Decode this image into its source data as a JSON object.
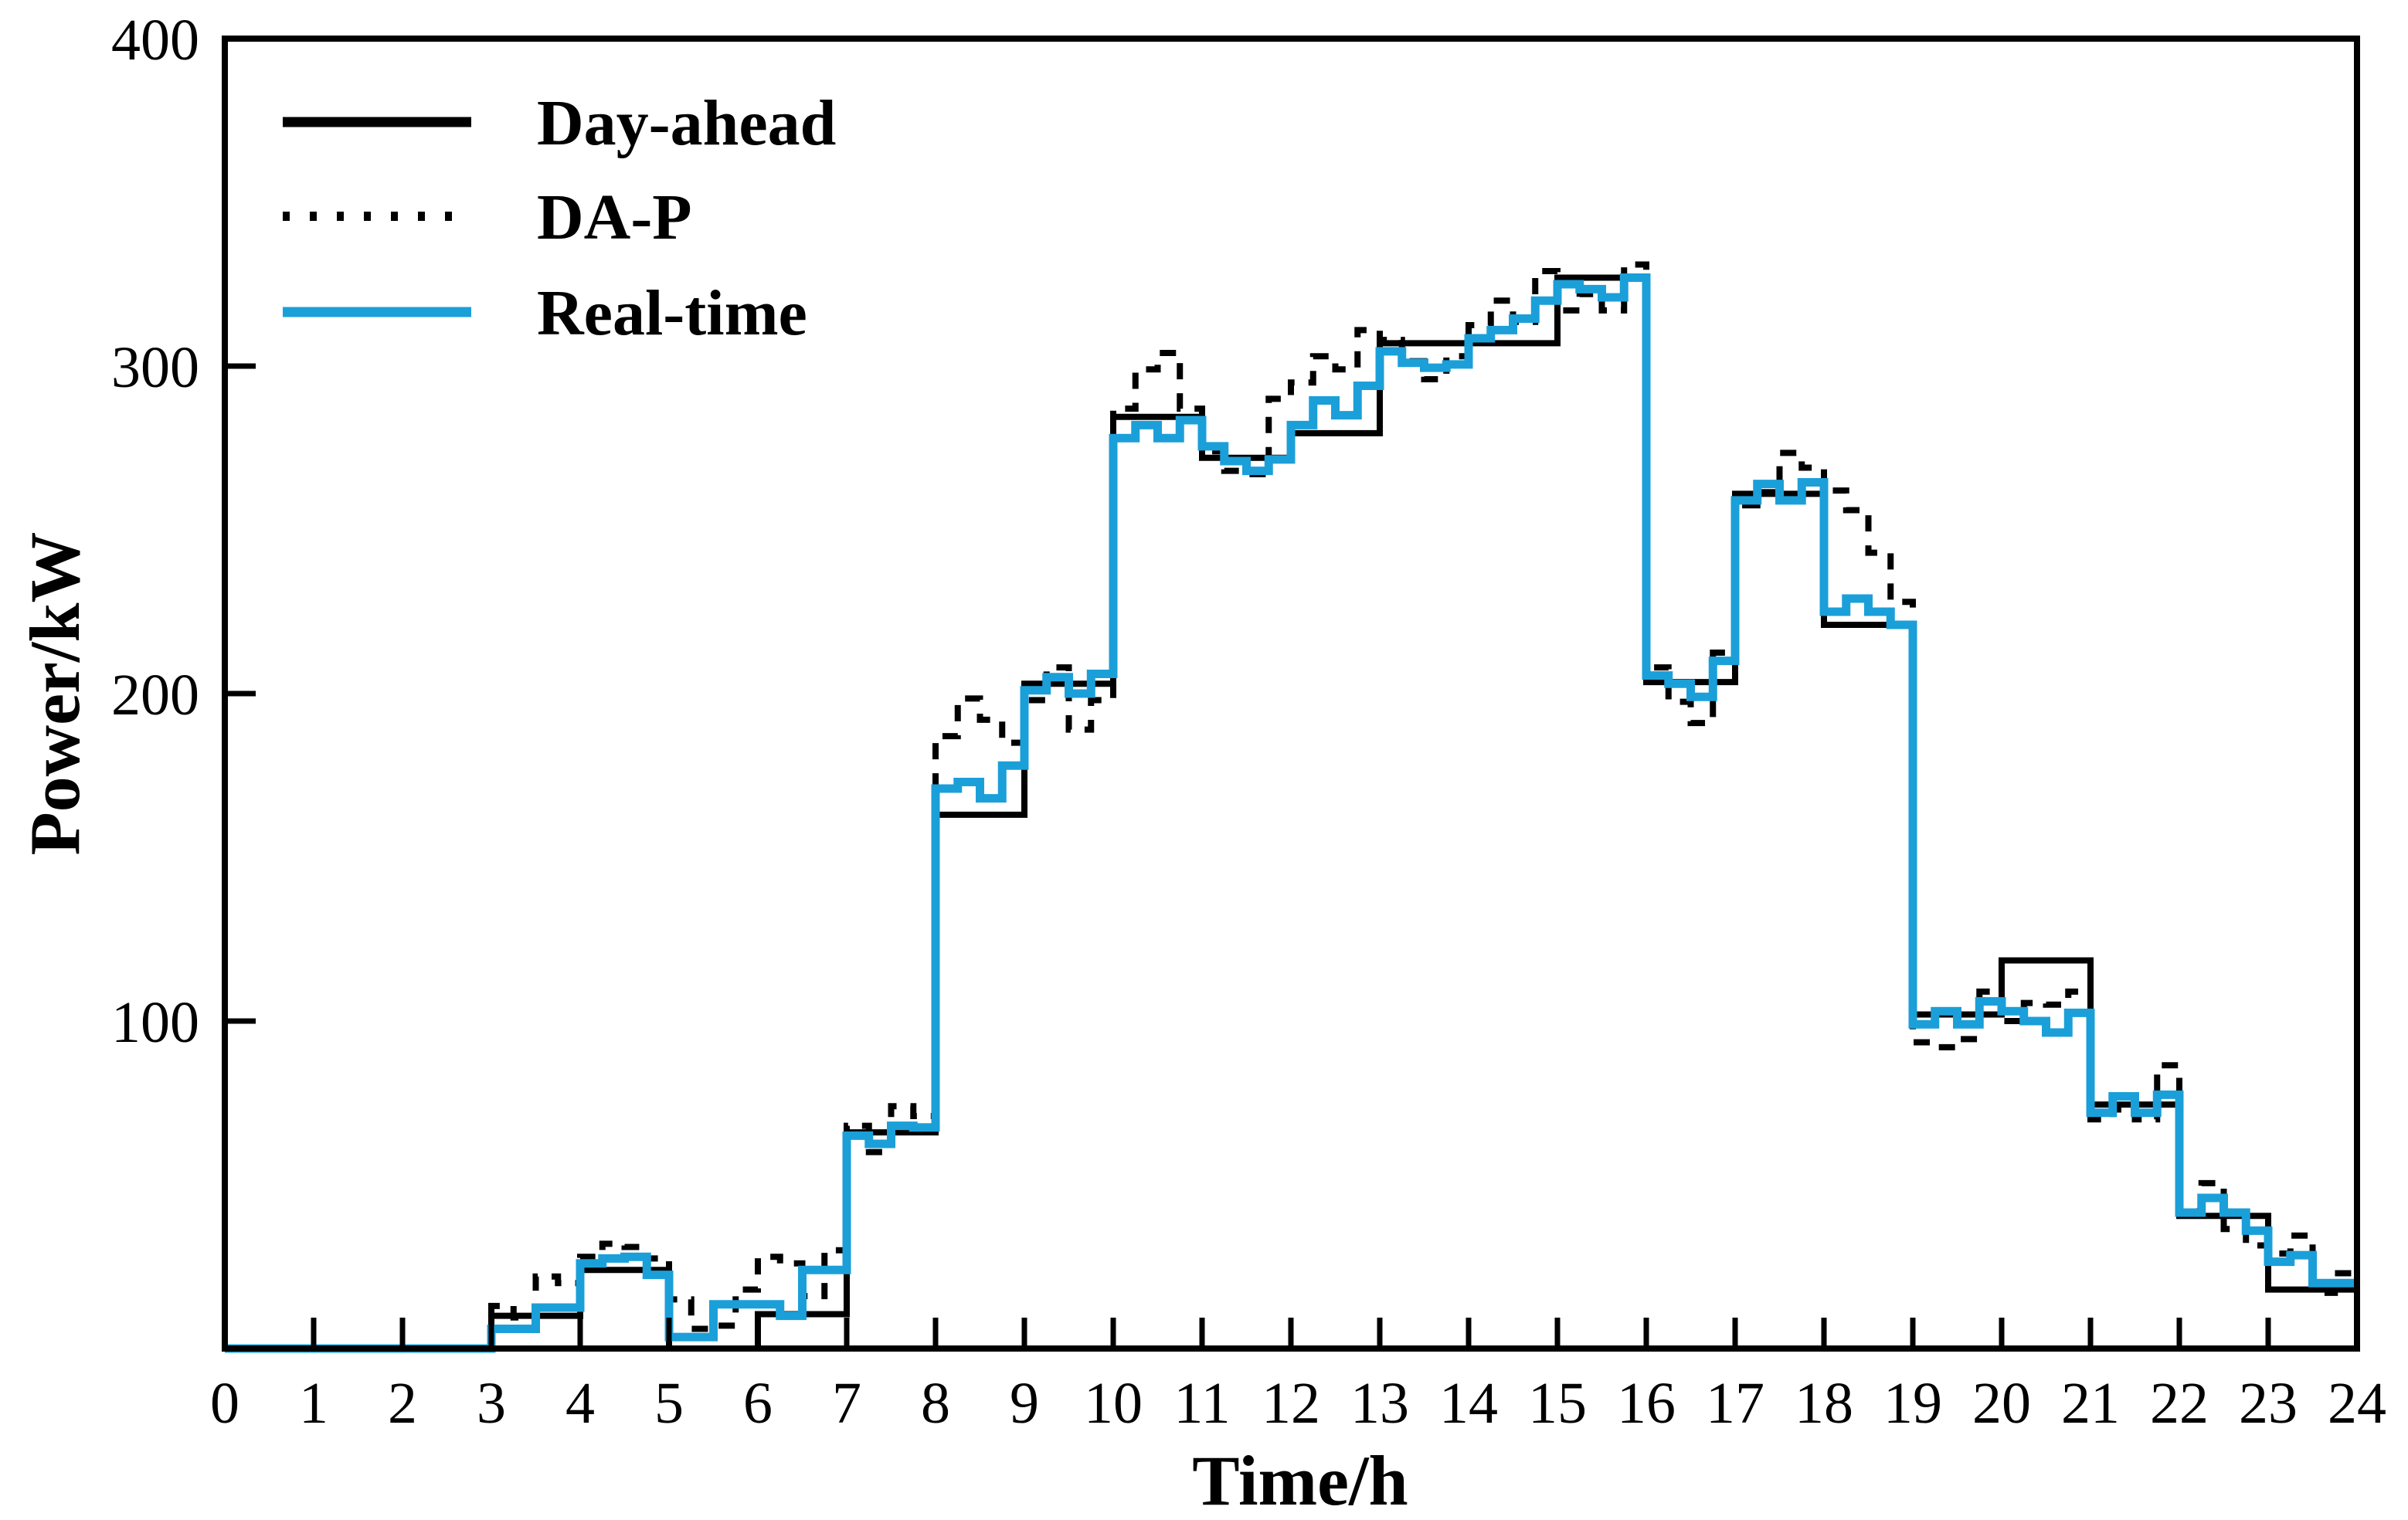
{
  "figure": {
    "x_axis_title": "Time/h",
    "y_axis_title": "Power/kW"
  },
  "legend": {
    "position": "upper-left",
    "items": [
      {
        "label": "Day-ahead",
        "line_style": "solid",
        "color": "#000000"
      },
      {
        "label": "DA-P",
        "line_style": "dashed",
        "color": "#000000"
      },
      {
        "label": "Real-time",
        "line_style": "solid",
        "color": "#1B9FD9"
      }
    ]
  },
  "colors": {
    "foreground": "#000000",
    "realtime_blue": "#1B9FD9",
    "background": "#FFFFFF"
  },
  "chart_data": {
    "type": "line",
    "step": true,
    "title": "",
    "xlabel": "Time/h",
    "ylabel": "Power/kW",
    "xlim": [
      0,
      24
    ],
    "ylim": [
      0,
      400
    ],
    "x_ticks": [
      0,
      1,
      2,
      3,
      4,
      5,
      6,
      7,
      8,
      9,
      10,
      11,
      12,
      13,
      14,
      15,
      16,
      17,
      18,
      19,
      20,
      21,
      22,
      23,
      24
    ],
    "y_ticks": [
      100,
      200,
      300,
      400
    ],
    "grid": false,
    "legend_position": "upper-left",
    "series": [
      {
        "name": "Day-ahead",
        "color": "#000000",
        "dash": "solid",
        "width": 8,
        "interval_hours": 1,
        "values": [
          0,
          0,
          0,
          10,
          24,
          0,
          10.5,
          66,
          163,
          203,
          284.5,
          272,
          279.5,
          307,
          307,
          327,
          203.5,
          261,
          221,
          102,
          118.5,
          74.5,
          40.5,
          18
        ]
      },
      {
        "name": "DA-P",
        "color": "#000000",
        "dash": "dashed",
        "width": 8,
        "interval_hours": 0.25,
        "values": [
          0,
          0,
          0,
          0,
          0,
          0,
          0,
          0,
          0,
          0,
          0,
          0,
          13,
          9.5,
          22,
          20,
          28,
          32,
          31,
          27.5,
          15,
          6,
          7,
          18,
          28,
          26,
          16,
          30,
          68,
          60,
          74,
          71,
          187,
          198.5,
          192,
          185,
          198,
          208,
          189,
          198,
          287,
          299,
          304,
          287,
          274,
          268,
          267,
          290,
          295,
          303,
          299,
          311,
          308,
          301.5,
          296,
          303,
          312.5,
          320,
          313.5,
          329,
          317,
          322,
          317,
          331,
          208,
          197.5,
          191,
          212.5,
          257.5,
          261.5,
          273.5,
          269,
          262,
          256,
          243,
          228,
          93.5,
          92,
          94.5,
          109,
          100,
          105.5,
          105,
          109,
          70,
          73,
          70,
          86.5,
          42,
          50.5,
          36.5,
          31.5,
          29,
          34.5,
          17,
          23
        ]
      },
      {
        "name": "Real-time",
        "color": "#1B9FD9",
        "dash": "solid",
        "width": 11,
        "interval_hours": 0.25,
        "values": [
          0,
          0,
          0,
          0,
          0,
          0,
          0,
          0,
          0,
          0,
          0,
          0,
          6,
          6,
          12.5,
          12.5,
          26,
          27.5,
          28,
          22.5,
          3.5,
          3.5,
          13.5,
          13.5,
          13.5,
          10,
          24,
          24,
          65,
          62.5,
          68,
          67.5,
          171,
          173,
          168,
          178,
          201,
          205,
          200,
          206,
          278,
          282,
          278,
          283.5,
          275.5,
          271,
          268,
          271.5,
          282,
          289.5,
          285,
          294,
          304.5,
          301,
          299.5,
          300.5,
          308.5,
          311,
          314.5,
          320,
          325,
          323.5,
          321,
          327,
          205.5,
          203,
          199,
          210,
          259,
          264,
          259,
          264.5,
          225,
          229,
          225,
          221,
          99,
          103,
          99,
          106,
          103,
          100,
          96.5,
          102.5,
          72,
          77,
          72,
          77.5,
          41.5,
          46,
          41.5,
          36,
          26.5,
          28.5,
          20,
          20
        ]
      }
    ]
  }
}
